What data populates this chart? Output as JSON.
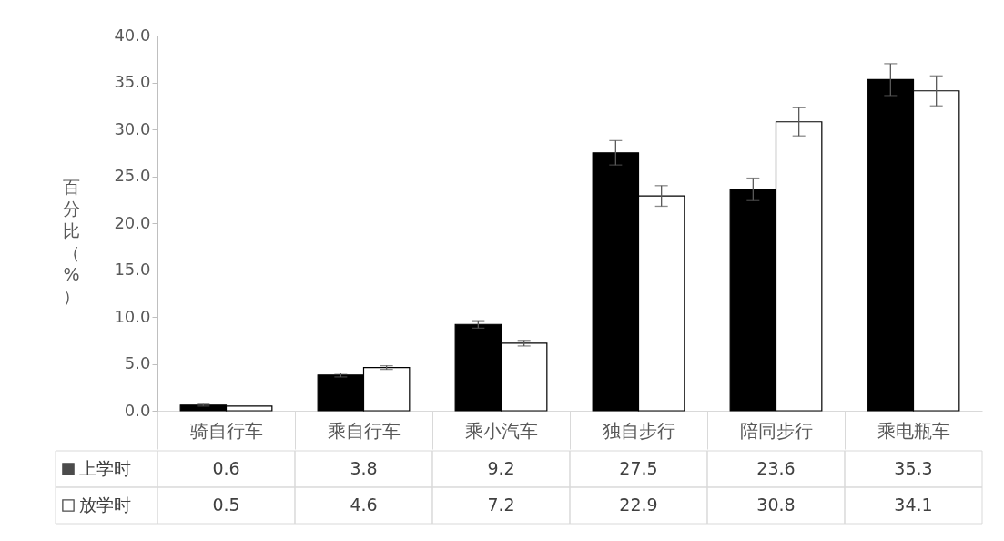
{
  "chart_data": {
    "type": "bar",
    "ylabel": "百分比（%）",
    "categories": [
      "骑自行车",
      "乘自行车",
      "乘小汽车",
      "独自步行",
      "陪同步行",
      "乘电瓶车"
    ],
    "series": [
      {
        "name": "上学时",
        "color": "#000000",
        "values": [
          0.6,
          3.8,
          9.2,
          27.5,
          23.6,
          35.3
        ],
        "errors": [
          0.1,
          0.2,
          0.4,
          1.3,
          1.2,
          1.7
        ]
      },
      {
        "name": "放学时",
        "color": "#ffffff",
        "values": [
          0.5,
          4.6,
          7.2,
          22.9,
          30.8,
          34.1
        ],
        "errors": [
          null,
          0.2,
          0.3,
          1.1,
          1.5,
          1.6
        ]
      }
    ],
    "ylim": [
      0,
      40
    ],
    "yticks": [
      {
        "value": 0,
        "label": "0.0"
      },
      {
        "value": 5,
        "label": "5.0"
      },
      {
        "value": 10,
        "label": "10.0"
      },
      {
        "value": 15,
        "label": "15.0"
      },
      {
        "value": 20,
        "label": "20.0"
      },
      {
        "value": 25,
        "label": "25.0"
      },
      {
        "value": 30,
        "label": "30.0"
      },
      {
        "value": 35,
        "label": "35.0"
      },
      {
        "value": 40,
        "label": "40.0"
      }
    ],
    "grid": false,
    "legend": "bottom left",
    "data_labels": true
  }
}
